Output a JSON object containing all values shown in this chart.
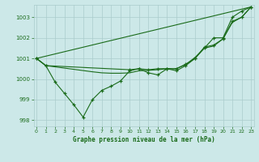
{
  "title": "Graphe pression niveau de la mer (hPa)",
  "bg_color": "#cce8e8",
  "grid_color": "#aacccc",
  "line_color": "#1a6b1a",
  "xlim": [
    -0.3,
    23.3
  ],
  "ylim": [
    997.7,
    1003.6
  ],
  "yticks": [
    998,
    999,
    1000,
    1001,
    1002,
    1003
  ],
  "xticks": [
    0,
    1,
    2,
    3,
    4,
    5,
    6,
    7,
    8,
    9,
    10,
    11,
    12,
    13,
    14,
    15,
    16,
    17,
    18,
    19,
    20,
    21,
    22,
    23
  ],
  "series": [
    {
      "x": [
        0,
        1,
        2,
        3,
        4,
        5,
        6,
        7,
        8,
        9,
        10,
        11,
        12,
        13,
        14,
        15,
        16,
        17,
        18,
        19,
        20,
        21,
        22,
        23
      ],
      "y": [
        1001.0,
        1000.65,
        999.85,
        999.3,
        998.75,
        998.15,
        999.0,
        999.45,
        999.65,
        999.9,
        1000.4,
        1000.5,
        1000.3,
        1000.2,
        1000.5,
        1000.4,
        1000.65,
        1001.0,
        1001.5,
        1002.0,
        1002.0,
        1003.0,
        1003.3,
        1003.5
      ],
      "has_markers": true
    },
    {
      "x": [
        0,
        1,
        10,
        11,
        12,
        13,
        14,
        15,
        16,
        17,
        18,
        19,
        20,
        21,
        22,
        23
      ],
      "y": [
        1001.0,
        1000.65,
        1000.45,
        1000.5,
        1000.45,
        1000.5,
        1000.5,
        1000.5,
        1000.72,
        1001.0,
        1001.55,
        1001.65,
        1001.95,
        1002.8,
        1003.0,
        1003.5
      ],
      "has_markers": true
    },
    {
      "x": [
        0,
        1,
        6,
        7,
        8,
        9,
        10,
        11,
        12,
        13,
        14,
        15,
        16,
        17,
        18,
        19,
        20,
        21,
        22,
        23
      ],
      "y": [
        1001.0,
        1000.65,
        1000.35,
        1000.3,
        1000.28,
        1000.28,
        1000.3,
        1000.4,
        1000.42,
        1000.45,
        1000.5,
        1000.5,
        1000.7,
        1001.05,
        1001.5,
        1001.6,
        1001.95,
        1002.75,
        1003.0,
        1003.5
      ],
      "has_markers": false
    },
    {
      "x": [
        0,
        23
      ],
      "y": [
        1001.0,
        1003.5
      ],
      "has_markers": false
    }
  ]
}
